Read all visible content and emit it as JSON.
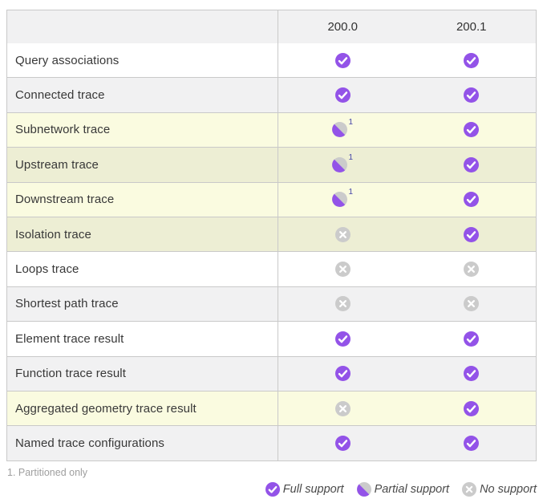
{
  "table": {
    "columns": [
      "200.0",
      "200.1"
    ],
    "rows": [
      {
        "label": "Query associations",
        "highlight": false,
        "values": [
          {
            "state": "full",
            "sup": ""
          },
          {
            "state": "full",
            "sup": ""
          }
        ]
      },
      {
        "label": "Connected trace",
        "highlight": false,
        "values": [
          {
            "state": "full",
            "sup": ""
          },
          {
            "state": "full",
            "sup": ""
          }
        ]
      },
      {
        "label": "Subnetwork trace",
        "highlight": true,
        "values": [
          {
            "state": "partial",
            "sup": "1"
          },
          {
            "state": "full",
            "sup": ""
          }
        ]
      },
      {
        "label": "Upstream trace",
        "highlight": true,
        "values": [
          {
            "state": "partial",
            "sup": "1"
          },
          {
            "state": "full",
            "sup": ""
          }
        ]
      },
      {
        "label": "Downstream trace",
        "highlight": true,
        "values": [
          {
            "state": "partial",
            "sup": "1"
          },
          {
            "state": "full",
            "sup": ""
          }
        ]
      },
      {
        "label": "Isolation trace",
        "highlight": true,
        "values": [
          {
            "state": "none",
            "sup": ""
          },
          {
            "state": "full",
            "sup": ""
          }
        ]
      },
      {
        "label": "Loops trace",
        "highlight": false,
        "values": [
          {
            "state": "none",
            "sup": ""
          },
          {
            "state": "none",
            "sup": ""
          }
        ]
      },
      {
        "label": "Shortest path trace",
        "highlight": false,
        "values": [
          {
            "state": "none",
            "sup": ""
          },
          {
            "state": "none",
            "sup": ""
          }
        ]
      },
      {
        "label": "Element trace result",
        "highlight": false,
        "values": [
          {
            "state": "full",
            "sup": ""
          },
          {
            "state": "full",
            "sup": ""
          }
        ]
      },
      {
        "label": "Function trace result",
        "highlight": false,
        "values": [
          {
            "state": "full",
            "sup": ""
          },
          {
            "state": "full",
            "sup": ""
          }
        ]
      },
      {
        "label": "Aggregated geometry trace result",
        "highlight": true,
        "values": [
          {
            "state": "none",
            "sup": ""
          },
          {
            "state": "full",
            "sup": ""
          }
        ]
      },
      {
        "label": "Named trace configurations",
        "highlight": false,
        "values": [
          {
            "state": "full",
            "sup": ""
          },
          {
            "state": "full",
            "sup": ""
          }
        ]
      }
    ]
  },
  "footnote": "1. Partitioned only",
  "legend": [
    {
      "state": "full",
      "label": "Full support"
    },
    {
      "state": "partial",
      "label": "Partial support"
    },
    {
      "state": "none",
      "label": "No support"
    }
  ],
  "colors": {
    "accent_purple": "#9353e8",
    "icon_gray": "#cbcbcb",
    "highlight_light": "#fafbe0",
    "highlight_dark": "#edeed4",
    "row_gray": "#f1f1f2",
    "border": "#c9c9c9",
    "footnote_gray": "#9e9e9e"
  }
}
